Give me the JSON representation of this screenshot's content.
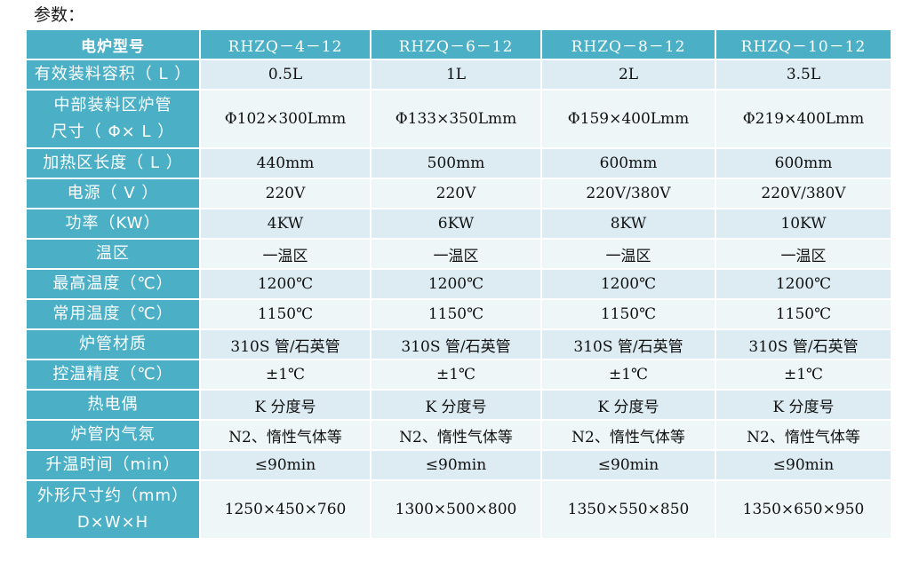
{
  "heading": "参数：",
  "header": {
    "label": "电炉型号",
    "models": [
      "RHZQ－4－12",
      "RHZQ－6－12",
      "RHZQ－8－12",
      "RHZQ－10－12"
    ]
  },
  "rows": [
    {
      "label": [
        "有效装料容积（ L ）"
      ],
      "values": [
        "0.5L",
        "1L",
        "2L",
        "3.5L"
      ]
    },
    {
      "label": [
        "中部装料区炉管",
        "尺寸（ Φ× L ）"
      ],
      "values": [
        "Φ102×300Lmm",
        "Φ133×350Lmm",
        "Φ159×400Lmm",
        "Φ219×400Lmm"
      ]
    },
    {
      "label": [
        "加热区长度（ L ）"
      ],
      "values": [
        "440mm",
        "500mm",
        "600mm",
        "600mm"
      ]
    },
    {
      "label": [
        "电源（ V ）"
      ],
      "values": [
        "220V",
        "220V",
        "220V/380V",
        "220V/380V"
      ]
    },
    {
      "label": [
        "功率（KW）"
      ],
      "values": [
        "4KW",
        "6KW",
        "8KW",
        "10KW"
      ]
    },
    {
      "label": [
        "温区"
      ],
      "values": [
        "一温区",
        "一温区",
        "一温区",
        "一温区"
      ]
    },
    {
      "label": [
        "最高温度（℃）"
      ],
      "values": [
        "1200℃",
        "1200℃",
        "1200℃",
        "1200℃"
      ]
    },
    {
      "label": [
        "常用温度（℃）"
      ],
      "values": [
        "1150℃",
        "1150℃",
        "1150℃",
        "1150℃"
      ]
    },
    {
      "label": [
        "炉管材质"
      ],
      "values": [
        "310S 管/石英管",
        "310S 管/石英管",
        "310S 管/石英管",
        "310S 管/石英管"
      ]
    },
    {
      "label": [
        "控温精度（℃）"
      ],
      "values": [
        "±1℃",
        "±1℃",
        "±1℃",
        "±1℃"
      ]
    },
    {
      "label": [
        "热电偶"
      ],
      "values": [
        "K 分度号",
        "K 分度号",
        "K 分度号",
        "K 分度号"
      ]
    },
    {
      "label": [
        "炉管内气氛"
      ],
      "values": [
        "N2、惰性气体等",
        "N2、惰性气体等",
        "N2、惰性气体等",
        "N2、惰性气体等"
      ]
    },
    {
      "label": [
        "升温时间（min）"
      ],
      "values": [
        "≤90min",
        "≤90min",
        "≤90min",
        "≤90min"
      ]
    },
    {
      "label": [
        "外形尺寸约（mm）",
        "D×W×H"
      ],
      "values": [
        "1250×450×760",
        "1300×500×800",
        "1350×550×850",
        "1350×650×950"
      ]
    }
  ]
}
